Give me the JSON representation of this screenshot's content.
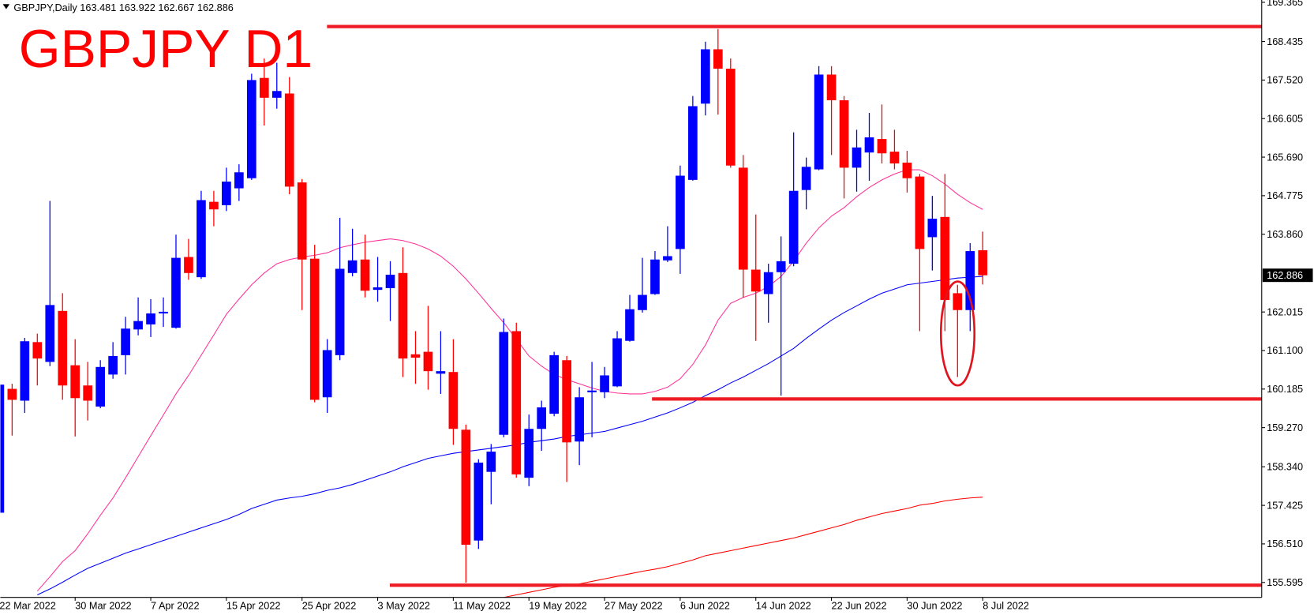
{
  "chart_data": {
    "type": "candlestick",
    "symbol_label": "GBPJPY,Daily",
    "annotation": "GBPJPY D1",
    "up_color": "#0000ff",
    "down_color": "#ff0000",
    "categories": [
      "22 Mar 2022",
      null,
      null,
      null,
      null,
      null,
      "30 Mar 2022",
      null,
      null,
      null,
      null,
      null,
      "7 Apr 2022",
      null,
      null,
      null,
      null,
      null,
      "15 Apr 2022",
      null,
      null,
      null,
      null,
      null,
      "25 Apr 2022",
      null,
      null,
      null,
      null,
      null,
      "3 May 2022",
      null,
      null,
      null,
      null,
      null,
      "11 May 2022",
      null,
      null,
      null,
      null,
      null,
      "19 May 2022",
      null,
      null,
      null,
      null,
      null,
      "27 May 2022",
      null,
      null,
      null,
      null,
      null,
      "6 Jun 2022",
      null,
      null,
      null,
      null,
      null,
      "14 Jun 2022",
      null,
      null,
      null,
      null,
      null,
      "22 Jun 2022",
      null,
      null,
      null,
      null,
      null,
      "30 Jun 2022",
      null,
      null,
      null,
      null,
      null,
      "8 Jul 2022"
    ],
    "open": [
      157.25,
      160.19,
      159.91,
      161.3,
      160.83,
      162.04,
      160.75,
      160.27,
      159.77,
      160.53,
      160.99,
      161.6,
      161.72,
      161.98,
      161.64,
      163.32,
      162.84,
      164.63,
      164.55,
      164.95,
      165.19,
      167.57,
      167.1,
      167.2,
      165.09,
      163.28,
      159.99,
      160.99,
      162.94,
      163.26,
      162.54,
      162.58,
      162.94,
      161.01,
      161.07,
      160.55,
      160.59,
      159.22,
      156.59,
      158.22,
      159.1,
      161.56,
      158.08,
      159.24,
      159.6,
      160.87,
      158.94,
      160.11,
      160.11,
      160.25,
      161.33,
      162.06,
      162.44,
      163.24,
      163.51,
      165.15,
      166.96,
      168.25,
      167.79,
      165.44,
      163.02,
      162.44,
      162.96,
      163.16,
      164.91,
      165.4,
      167.65,
      167.04,
      165.44,
      165.8,
      166.12,
      165.82,
      165.56,
      165.23,
      163.79,
      164.27,
      162.46,
      162.06,
      163.481
    ],
    "high": [
      160.37,
      160.31,
      161.4,
      161.5,
      164.65,
      162.46,
      161.37,
      160.83,
      160.87,
      161.3,
      161.9,
      162.36,
      162.32,
      162.36,
      163.85,
      163.75,
      164.89,
      164.89,
      165.44,
      165.52,
      167.67,
      168.03,
      167.93,
      167.59,
      165.17,
      163.61,
      161.37,
      164.25,
      163.99,
      163.85,
      163.32,
      163.22,
      163.55,
      161.56,
      162.16,
      161.56,
      161.37,
      159.34,
      158.52,
      158.88,
      161.86,
      161.76,
      159.58,
      159.91,
      161.07,
      160.97,
      160.23,
      160.83,
      160.71,
      161.56,
      162.42,
      163.3,
      163.46,
      164.05,
      165.49,
      167.14,
      168.43,
      168.73,
      168.03,
      165.74,
      164.33,
      163.16,
      163.81,
      166.28,
      165.68,
      167.85,
      167.85,
      167.14,
      166.34,
      166.74,
      166.94,
      166.34,
      165.84,
      165.29,
      164.77,
      165.29,
      162.66,
      163.65,
      163.922
    ],
    "low": [
      157.19,
      159.08,
      159.62,
      160.27,
      160.73,
      159.93,
      159.06,
      159.44,
      159.73,
      160.43,
      160.53,
      161.46,
      161.42,
      161.66,
      161.62,
      162.78,
      162.8,
      164.05,
      164.41,
      164.65,
      165.15,
      166.44,
      166.84,
      164.81,
      162.06,
      159.87,
      159.62,
      160.87,
      162.86,
      162.36,
      162.26,
      161.8,
      160.47,
      160.31,
      160.17,
      160.07,
      158.86,
      155.59,
      156.39,
      157.45,
      159.04,
      158.08,
      157.88,
      158.72,
      159.54,
      157.98,
      158.38,
      159.04,
      159.97,
      160.23,
      161.31,
      162.0,
      162.42,
      163.2,
      162.92,
      165.13,
      166.68,
      166.7,
      165.44,
      162.36,
      161.33,
      161.76,
      160.03,
      163.1,
      164.45,
      165.38,
      165.74,
      164.71,
      164.87,
      165.13,
      165.54,
      165.4,
      164.85,
      161.56,
      163.0,
      161.56,
      160.47,
      161.56,
      162.667
    ],
    "close": [
      160.29,
      159.93,
      161.32,
      160.91,
      162.18,
      160.27,
      159.97,
      159.91,
      160.71,
      160.97,
      161.62,
      161.8,
      161.98,
      162.02,
      163.3,
      162.94,
      164.67,
      164.45,
      165.11,
      165.33,
      167.52,
      167.1,
      167.26,
      164.99,
      163.26,
      159.93,
      161.11,
      163.04,
      163.24,
      162.52,
      162.6,
      162.9,
      160.91,
      160.93,
      160.61,
      160.61,
      159.24,
      156.49,
      158.44,
      158.7,
      161.54,
      158.16,
      159.24,
      159.75,
      160.99,
      158.92,
      159.99,
      160.15,
      160.51,
      161.39,
      162.08,
      162.42,
      163.26,
      163.34,
      165.25,
      166.9,
      168.25,
      167.79,
      165.49,
      163.02,
      162.5,
      162.96,
      163.22,
      164.89,
      165.46,
      167.65,
      167.04,
      165.44,
      165.92,
      166.16,
      165.78,
      165.54,
      165.19,
      163.51,
      164.23,
      162.3,
      162.06,
      163.46,
      162.886
    ],
    "lines": [
      {
        "color": "#ff3399",
        "values": [
          null,
          null,
          null,
          155.39,
          155.73,
          156.09,
          156.35,
          156.75,
          157.19,
          157.6,
          158.08,
          158.58,
          159.08,
          159.57,
          160.07,
          160.51,
          160.99,
          161.47,
          161.96,
          162.32,
          162.66,
          162.94,
          163.16,
          163.26,
          163.32,
          163.36,
          163.42,
          163.54,
          163.61,
          163.67,
          163.71,
          163.75,
          163.71,
          163.63,
          163.51,
          163.34,
          163.1,
          162.8,
          162.46,
          162.1,
          161.76,
          161.37,
          160.97,
          160.73,
          160.53,
          160.41,
          160.31,
          160.21,
          160.13,
          160.09,
          160.07,
          160.07,
          160.13,
          160.23,
          160.43,
          160.77,
          161.23,
          161.82,
          162.22,
          162.36,
          162.46,
          162.62,
          162.86,
          163.22,
          163.65,
          164.01,
          164.29,
          164.49,
          164.75,
          164.97,
          165.15,
          165.29,
          165.39,
          165.39,
          165.25,
          165.05,
          164.81,
          164.61,
          164.45
        ]
      },
      {
        "color": "#0000ff",
        "values": [
          null,
          null,
          null,
          155.3,
          155.44,
          155.6,
          155.77,
          155.93,
          156.05,
          156.17,
          156.29,
          156.39,
          156.49,
          156.59,
          156.69,
          156.79,
          156.89,
          156.99,
          157.09,
          157.21,
          157.35,
          157.45,
          157.55,
          157.6,
          157.64,
          157.7,
          157.78,
          157.84,
          157.92,
          158.02,
          158.12,
          158.22,
          158.34,
          158.44,
          158.54,
          158.6,
          158.66,
          158.7,
          158.74,
          158.78,
          158.82,
          158.86,
          158.92,
          158.96,
          159.0,
          159.06,
          159.1,
          159.14,
          159.18,
          159.26,
          159.34,
          159.42,
          159.52,
          159.62,
          159.74,
          159.87,
          160.03,
          160.17,
          160.33,
          160.47,
          160.63,
          160.79,
          160.97,
          161.15,
          161.39,
          161.61,
          161.82,
          162.0,
          162.16,
          162.32,
          162.46,
          162.56,
          162.66,
          162.7,
          162.74,
          162.78,
          162.82,
          162.84,
          162.86
        ]
      },
      {
        "color": "#ff0000",
        "values": [
          null,
          null,
          null,
          null,
          null,
          null,
          null,
          null,
          null,
          null,
          null,
          null,
          null,
          null,
          null,
          null,
          null,
          null,
          null,
          null,
          null,
          null,
          null,
          null,
          null,
          null,
          null,
          null,
          null,
          null,
          null,
          null,
          null,
          null,
          null,
          null,
          null,
          null,
          null,
          null,
          155.24,
          155.3,
          155.36,
          155.42,
          155.48,
          155.52,
          155.56,
          155.62,
          155.68,
          155.74,
          155.8,
          155.86,
          155.91,
          155.97,
          156.05,
          156.13,
          156.23,
          156.29,
          156.35,
          156.41,
          156.47,
          156.53,
          156.59,
          156.65,
          156.73,
          156.81,
          156.89,
          156.97,
          157.07,
          157.15,
          157.23,
          157.29,
          157.35,
          157.43,
          157.47,
          157.53,
          157.57,
          157.6,
          157.62
        ]
      }
    ],
    "levels": [
      {
        "value": 168.79,
        "color": "#ee1c24"
      },
      {
        "value": 159.95,
        "color": "#ee1c24"
      },
      {
        "value": 155.53,
        "color": "#ee1c24"
      }
    ],
    "ylim": [
      155.24,
      169.42
    ],
    "yticks": [
      169.365,
      168.435,
      {
        "value": 167.52,
        "label": "167.520"
      },
      166.605,
      {
        "value": 165.69,
        "label": "165.690"
      },
      164.775,
      {
        "value": 163.86,
        "label": "163.860"
      },
      162.015,
      {
        "value": 161.1,
        "label": "161.100"
      },
      160.185,
      {
        "value": 159.27,
        "label": "159.270"
      },
      {
        "value": 158.34,
        "label": "158.340"
      },
      157.425,
      {
        "value": 156.51,
        "label": "156.510"
      },
      155.595
    ]
  }
}
